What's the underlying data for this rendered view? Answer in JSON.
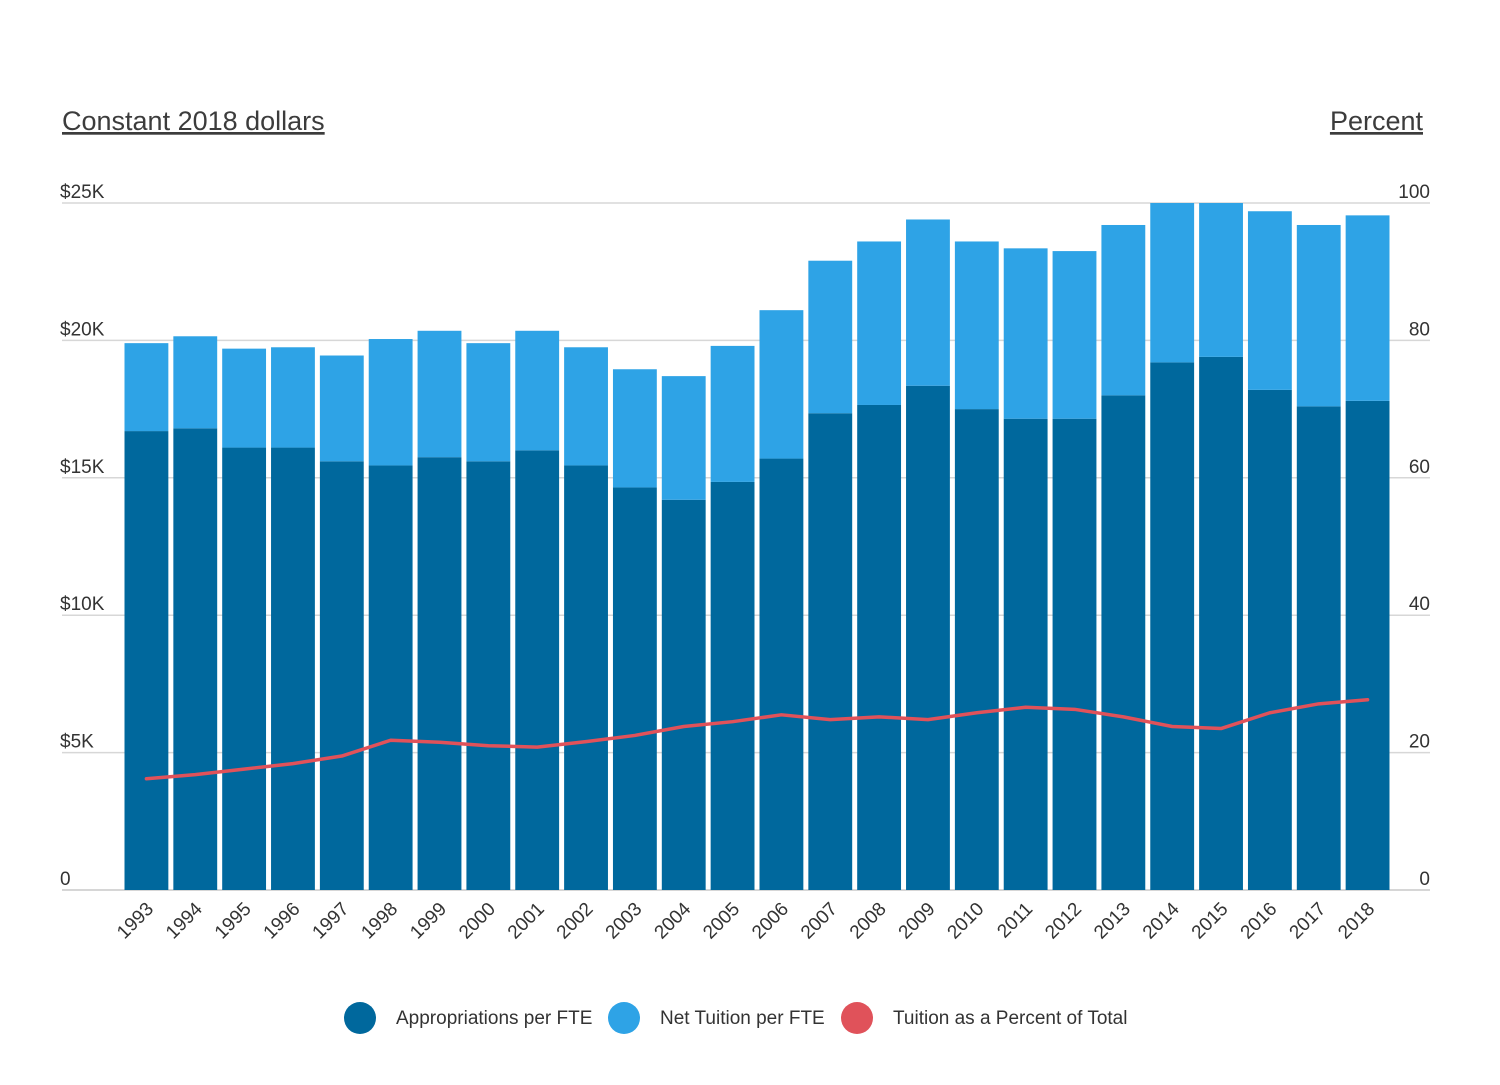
{
  "chart_data": {
    "type": "bar",
    "stacked": true,
    "left_axis_title": "Constant 2018 dollars",
    "right_axis_title": "Percent",
    "categories": [
      "1993",
      "1994",
      "1995",
      "1996",
      "1997",
      "1998",
      "1999",
      "2000",
      "2001",
      "2002",
      "2003",
      "2004",
      "2005",
      "2006",
      "2007",
      "2008",
      "2009",
      "2010",
      "2011",
      "2012",
      "2013",
      "2014",
      "2015",
      "2016",
      "2017",
      "2018"
    ],
    "series": [
      {
        "name": "Appropriations per FTE",
        "type": "bar",
        "axis": "left",
        "color": "#00689d",
        "values": [
          16700,
          16800,
          16100,
          16100,
          15600,
          15450,
          15750,
          15600,
          16000,
          15450,
          14650,
          14200,
          14850,
          15700,
          17350,
          17650,
          18350,
          17500,
          17150,
          17150,
          18000,
          19200,
          19400,
          18200,
          17600,
          17800
        ]
      },
      {
        "name": "Net Tuition per FTE",
        "type": "bar",
        "axis": "left",
        "color": "#2ea3e6",
        "values": [
          3200,
          3350,
          3600,
          3650,
          3850,
          4600,
          4600,
          4300,
          4350,
          4300,
          4300,
          4500,
          4950,
          5400,
          5550,
          5950,
          6050,
          6100,
          6200,
          6100,
          6200,
          5800,
          5600,
          6500,
          6600,
          6750
        ]
      },
      {
        "name": "Tuition as a Percent of Total",
        "type": "line",
        "axis": "right",
        "color": "#e0525a",
        "values": [
          16.2,
          16.8,
          17.6,
          18.4,
          19.5,
          21.8,
          21.5,
          21.0,
          20.8,
          21.6,
          22.5,
          23.8,
          24.5,
          25.5,
          24.8,
          25.2,
          24.8,
          25.8,
          26.6,
          26.3,
          25.2,
          23.8,
          23.5,
          25.8,
          27.1,
          27.7
        ]
      }
    ],
    "y_left": {
      "min": 0,
      "max": 25000,
      "ticks": [
        0,
        5000,
        10000,
        15000,
        20000,
        25000
      ],
      "tick_labels": [
        "0",
        "$5K",
        "$10K",
        "$15K",
        "$20K",
        "$25K"
      ]
    },
    "y_right": {
      "min": 0,
      "max": 100,
      "ticks": [
        0,
        20,
        40,
        60,
        80,
        100
      ],
      "tick_labels": [
        "0",
        "20",
        "40",
        "60",
        "80",
        "100"
      ]
    },
    "grid": true,
    "grid_color": "#d7d7d7",
    "legend_position": "bottom"
  }
}
